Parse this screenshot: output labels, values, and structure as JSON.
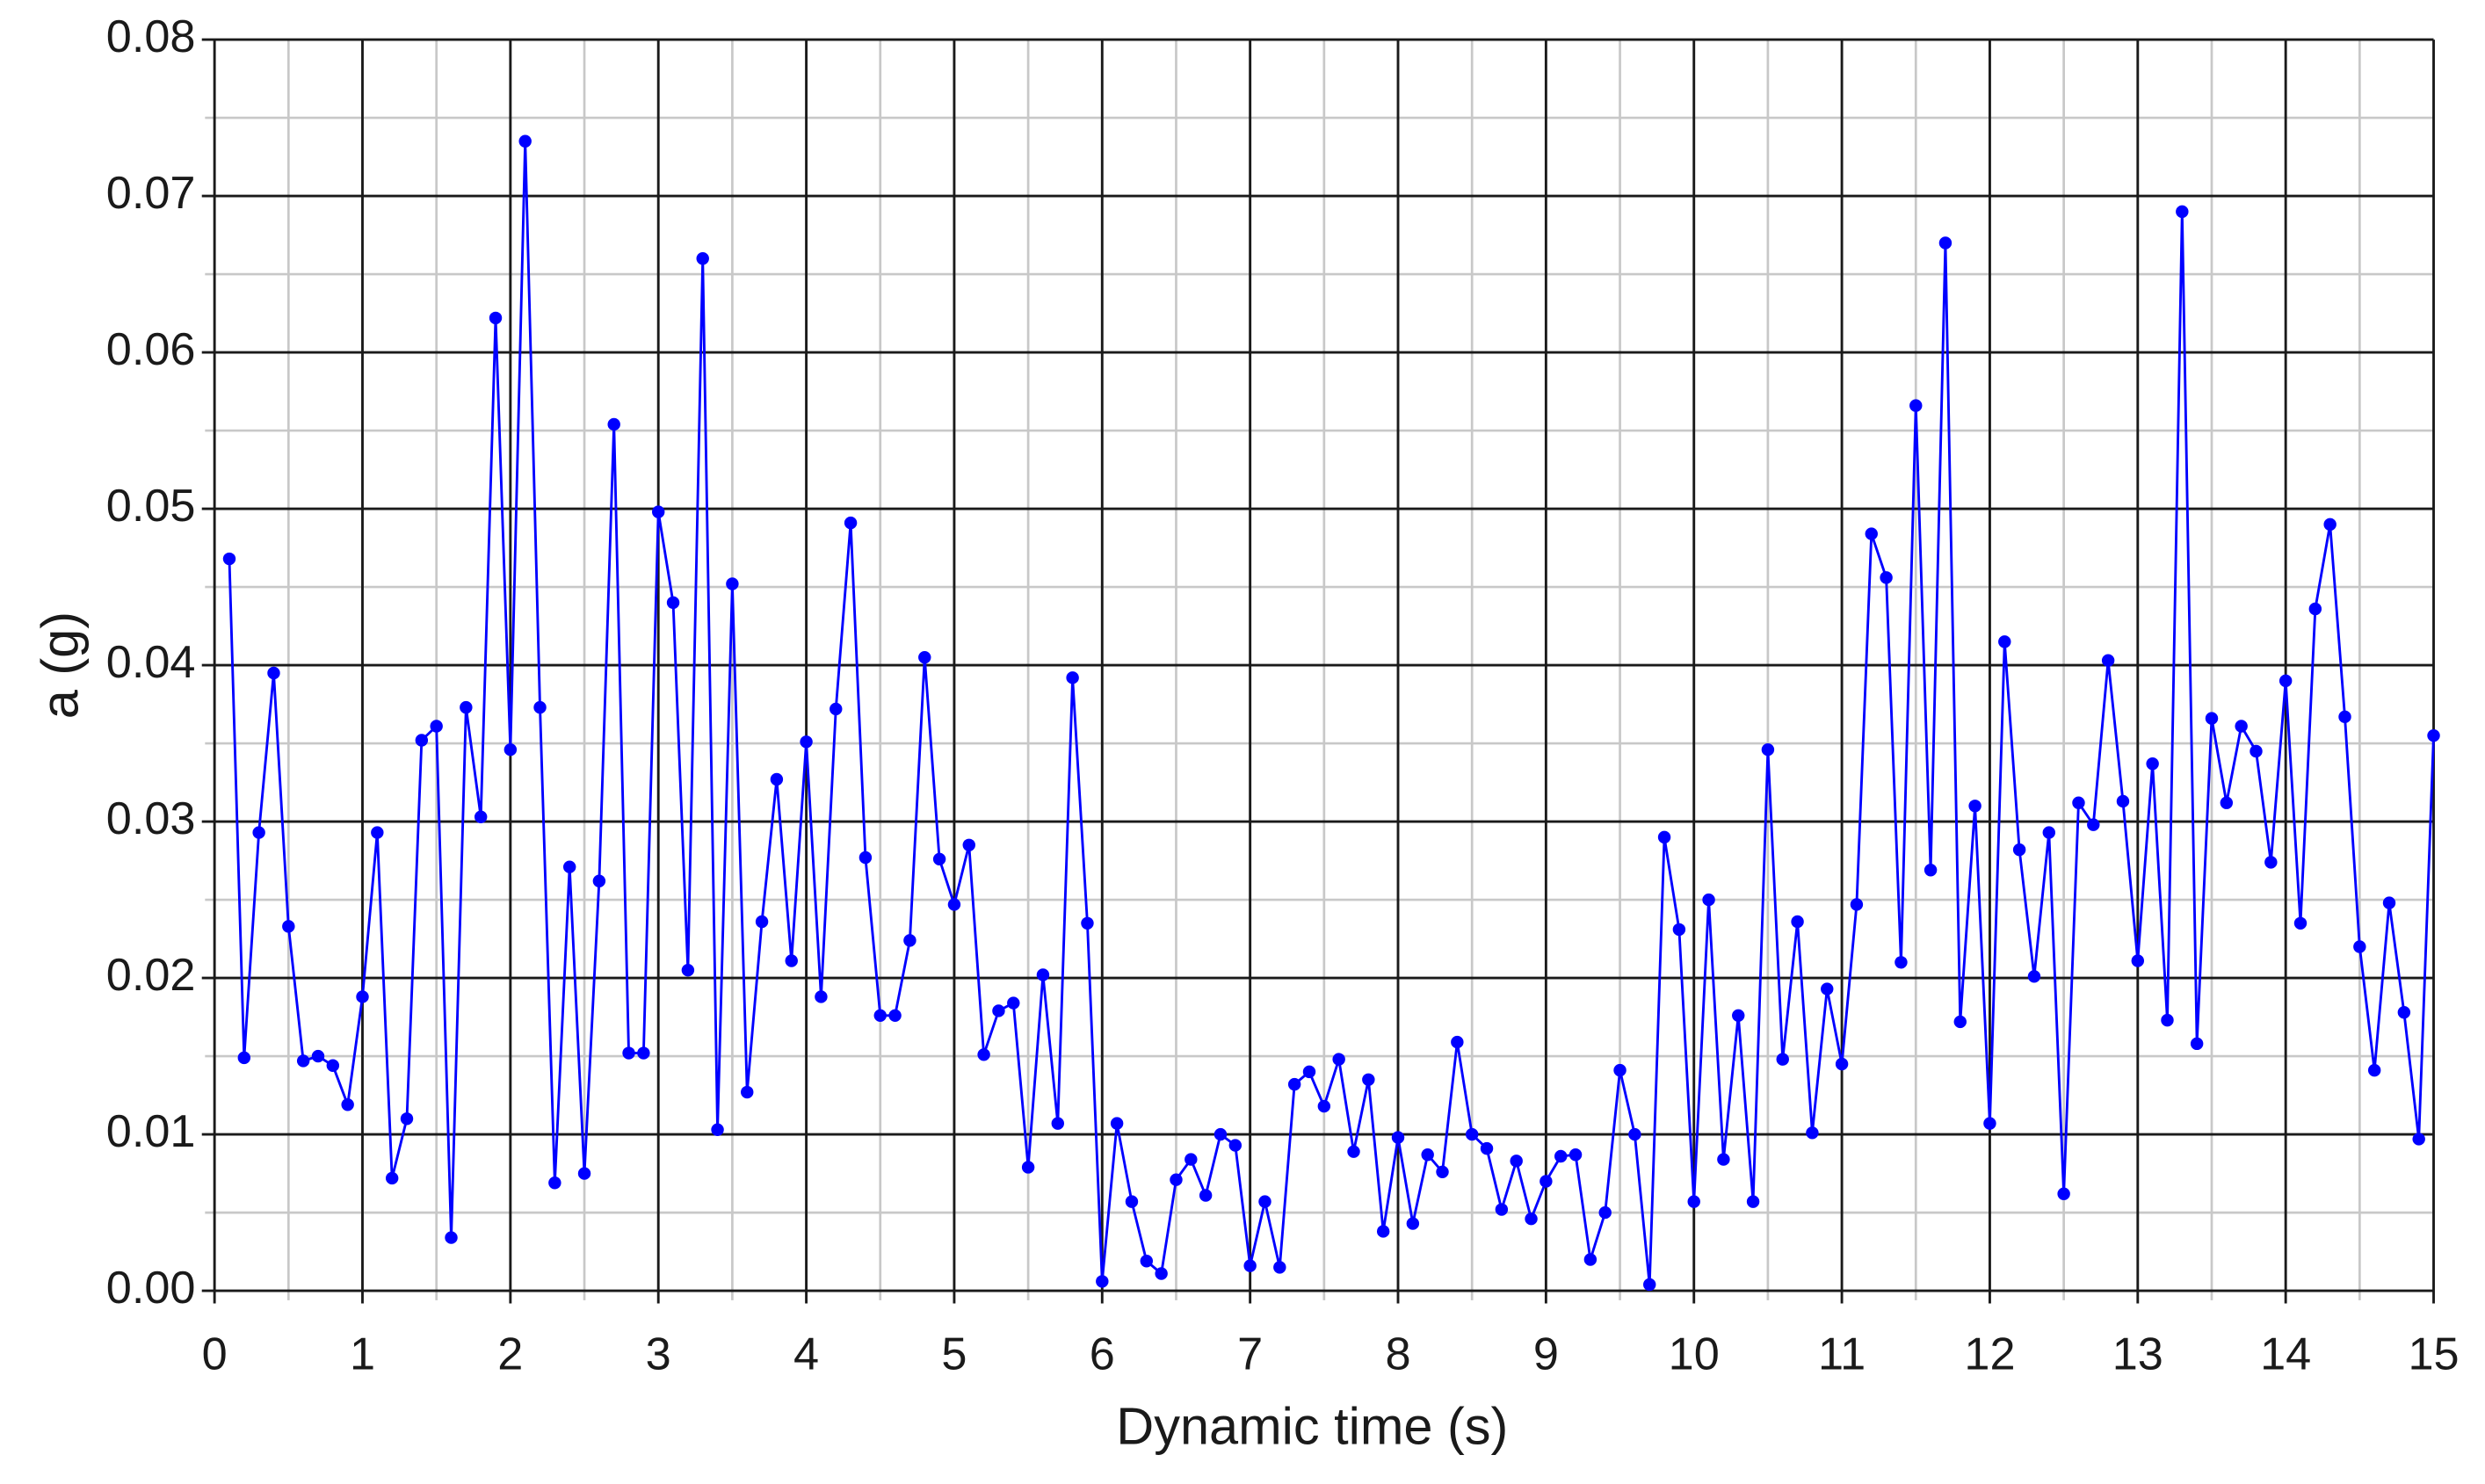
{
  "chart_data": {
    "type": "line",
    "xlabel": "Dynamic time (s)",
    "ylabel": "a (g)",
    "color": "#0000ff",
    "grid": true,
    "minor_grid": true,
    "x": [
      0.1,
      0.2,
      0.3,
      0.4,
      0.5,
      0.6,
      0.7,
      0.8,
      0.9,
      1.0,
      1.1,
      1.2,
      1.3,
      1.4,
      1.5,
      1.6,
      1.7,
      1.8,
      1.9,
      2.0,
      2.1,
      2.2,
      2.3,
      2.4,
      2.5,
      2.6,
      2.7,
      2.8,
      2.9,
      3.0,
      3.1,
      3.2,
      3.3,
      3.4,
      3.5,
      3.6,
      3.7,
      3.8,
      3.9,
      4.0,
      4.1,
      4.2,
      4.3,
      4.4,
      4.5,
      4.6,
      4.7,
      4.8,
      4.9,
      5.0,
      5.1,
      5.2,
      5.3,
      5.4,
      5.5,
      5.6,
      5.7,
      5.8,
      5.9,
      6.0,
      6.1,
      6.2,
      6.3,
      6.4,
      6.5,
      6.6,
      6.7,
      6.8,
      6.9,
      7.0,
      7.1,
      7.2,
      7.3,
      7.4,
      7.5,
      7.6,
      7.7,
      7.8,
      7.9,
      8.0,
      8.1,
      8.2,
      8.3,
      8.4,
      8.5,
      8.6,
      8.7,
      8.8,
      8.9,
      9.0,
      9.1,
      9.2,
      9.3,
      9.4,
      9.5,
      9.6,
      9.7,
      9.8,
      9.9,
      10.0,
      10.1,
      10.2,
      10.3,
      10.4,
      10.5,
      10.6,
      10.7,
      10.8,
      10.9,
      11.0,
      11.1,
      11.2,
      11.3,
      11.4,
      11.5,
      11.6,
      11.7,
      11.8,
      11.9,
      12.0,
      12.1,
      12.2,
      12.3,
      12.4,
      12.5,
      12.6,
      12.7,
      12.8,
      12.9,
      13.0,
      13.1,
      13.2,
      13.3,
      13.4,
      13.5,
      13.6,
      13.7,
      13.8,
      13.9,
      14.0,
      14.1,
      14.2,
      14.3,
      14.4,
      14.5,
      14.6,
      14.7,
      14.8,
      14.9,
      15.0
    ],
    "values": [
      0.0468,
      0.0149,
      0.0293,
      0.0395,
      0.0233,
      0.0147,
      0.015,
      0.0144,
      0.0119,
      0.0188,
      0.0293,
      0.0072,
      0.011,
      0.0352,
      0.0361,
      0.0034,
      0.0373,
      0.0303,
      0.0622,
      0.0346,
      0.0735,
      0.0373,
      0.0069,
      0.0271,
      0.0075,
      0.0262,
      0.0554,
      0.0152,
      0.0152,
      0.0498,
      0.044,
      0.0205,
      0.066,
      0.0103,
      0.0452,
      0.0127,
      0.0236,
      0.0327,
      0.0211,
      0.0351,
      0.0188,
      0.0372,
      0.0491,
      0.0277,
      0.0176,
      0.0176,
      0.0224,
      0.0405,
      0.0276,
      0.0247,
      0.0285,
      0.0151,
      0.0179,
      0.0184,
      0.0079,
      0.0202,
      0.0107,
      0.0392,
      0.0235,
      0.0006,
      0.0107,
      0.0057,
      0.0019,
      0.0011,
      0.0071,
      0.0084,
      0.0061,
      0.01,
      0.0093,
      0.0016,
      0.0057,
      0.0015,
      0.0132,
      0.014,
      0.0118,
      0.0148,
      0.0089,
      0.0135,
      0.0038,
      0.0098,
      0.0043,
      0.0087,
      0.0076,
      0.0159,
      0.01,
      0.0091,
      0.0052,
      0.0083,
      0.0046,
      0.007,
      0.0086,
      0.0087,
      0.002,
      0.005,
      0.0141,
      0.01,
      0.0004,
      0.029,
      0.0231,
      0.0057,
      0.025,
      0.0084,
      0.0176,
      0.0057,
      0.0346,
      0.0148,
      0.0236,
      0.0101,
      0.0193,
      0.0145,
      0.0247,
      0.0484,
      0.0456,
      0.021,
      0.0566,
      0.0269,
      0.067,
      0.0172,
      0.031,
      0.0107,
      0.0415,
      0.0282,
      0.0201,
      0.0293,
      0.0062,
      0.0312,
      0.0298,
      0.0403,
      0.0313,
      0.0211,
      0.0337,
      0.0173,
      0.069,
      0.0158,
      0.0366,
      0.0312,
      0.0361,
      0.0345,
      0.0274,
      0.039,
      0.0235,
      0.0436,
      0.049,
      0.0367,
      0.022,
      0.0141,
      0.0248,
      0.0178,
      0.0097,
      0.0355
    ],
    "xlim": [
      0,
      15
    ],
    "xticks": [
      0,
      1,
      2,
      3,
      4,
      5,
      6,
      7,
      8,
      9,
      10,
      11,
      12,
      13,
      14,
      15
    ],
    "ylim": [
      0,
      0.08
    ],
    "yticks": [
      {
        "value": 0,
        "label": "0.00"
      },
      0.01,
      0.02,
      0.03,
      0.04,
      0.05,
      0.06,
      0.07,
      0.08
    ]
  }
}
